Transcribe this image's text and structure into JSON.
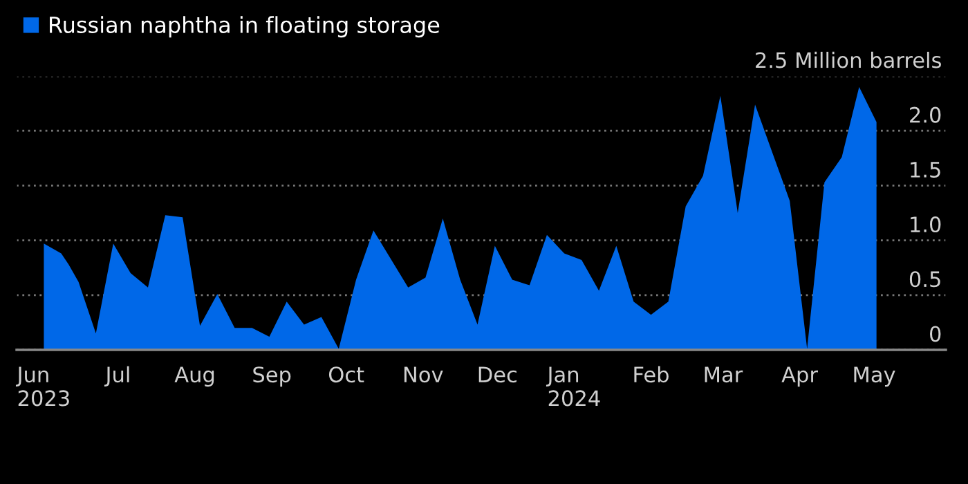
{
  "chart_data": {
    "type": "area",
    "x": [
      "2023-06-01",
      "2023-06-08",
      "2023-06-11",
      "2023-06-15",
      "2023-06-22",
      "2023-06-29",
      "2023-07-06",
      "2023-07-13",
      "2023-07-20",
      "2023-07-27",
      "2023-08-03",
      "2023-08-10",
      "2023-08-17",
      "2023-08-24",
      "2023-08-31",
      "2023-09-07",
      "2023-09-14",
      "2023-09-21",
      "2023-09-28",
      "2023-10-05",
      "2023-10-12",
      "2023-10-19",
      "2023-10-26",
      "2023-11-02",
      "2023-11-09",
      "2023-11-16",
      "2023-11-23",
      "2023-11-30",
      "2023-12-07",
      "2023-12-14",
      "2023-12-21",
      "2023-12-28",
      "2024-01-04",
      "2024-01-11",
      "2024-01-18",
      "2024-01-25",
      "2024-02-01",
      "2024-02-08",
      "2024-02-15",
      "2024-02-22",
      "2024-02-29",
      "2024-03-07",
      "2024-03-14",
      "2024-03-21",
      "2024-03-28",
      "2024-04-04",
      "2024-04-11",
      "2024-04-18",
      "2024-04-25",
      "2024-05-02"
    ],
    "series": [
      {
        "name": "Russian naphtha in floating storage",
        "color": "#0068e8",
        "values": [
          0.97,
          0.88,
          0.78,
          0.62,
          0.15,
          0.97,
          0.7,
          0.57,
          1.23,
          1.21,
          0.22,
          0.51,
          0.2,
          0.2,
          0.12,
          0.44,
          0.23,
          0.3,
          0.01,
          0.64,
          1.09,
          0.83,
          0.57,
          0.66,
          1.2,
          0.64,
          0.23,
          0.95,
          0.64,
          0.59,
          1.05,
          0.88,
          0.82,
          0.54,
          0.95,
          0.44,
          0.32,
          0.44,
          1.31,
          1.59,
          2.32,
          1.25,
          2.24,
          1.8,
          1.36,
          0.01,
          1.53,
          1.76,
          2.4,
          2.08
        ]
      }
    ],
    "xlim": [
      "2023-05-21",
      "2024-05-30"
    ],
    "xticks": [
      {
        "value": "2023-06-01",
        "label": "Jun\n2023"
      },
      {
        "value": "2023-07-01",
        "label": "Jul"
      },
      {
        "value": "2023-08-01",
        "label": "Aug"
      },
      {
        "value": "2023-09-01",
        "label": "Sep"
      },
      {
        "value": "2023-10-01",
        "label": "Oct"
      },
      {
        "value": "2023-11-01",
        "label": "Nov"
      },
      {
        "value": "2023-12-01",
        "label": "Dec"
      },
      {
        "value": "2024-01-01",
        "label": "Jan\n2024"
      },
      {
        "value": "2024-02-01",
        "label": "Feb"
      },
      {
        "value": "2024-03-01",
        "label": "Mar"
      },
      {
        "value": "2024-04-01",
        "label": "Apr"
      },
      {
        "value": "2024-05-01",
        "label": "May"
      }
    ],
    "ylim": [
      0,
      2.5
    ],
    "yticks": [
      {
        "value": 0,
        "label": "0"
      },
      {
        "value": 0.5,
        "label": "0.5"
      },
      {
        "value": 1,
        "label": "1.0"
      },
      {
        "value": 1.5,
        "label": "1.5"
      },
      {
        "value": 2,
        "label": "2.0"
      },
      {
        "value": 2.5,
        "label": "2.5 Million barrels"
      }
    ],
    "grid": "y",
    "legend": "top left"
  }
}
